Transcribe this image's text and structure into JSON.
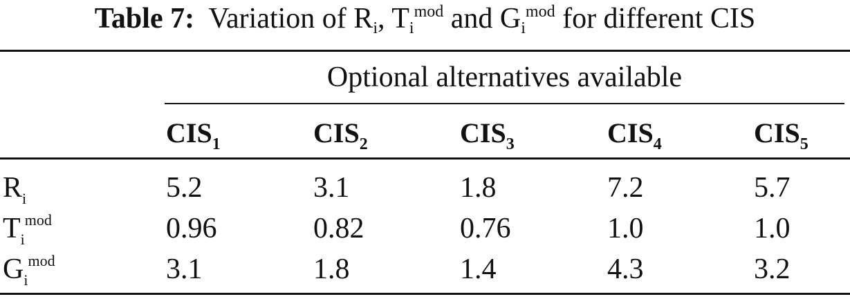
{
  "caption": {
    "label": "Table 7:",
    "text_before": "Variation of ",
    "r_symbol": "R",
    "r_sub": "i",
    "comma": ", ",
    "t_symbol": "T",
    "t_sub": "i",
    "t_sup": "mod",
    "and_text": " and ",
    "g_symbol": "G",
    "g_sub": "i",
    "g_sup": "mod",
    "text_after": " for different CIS"
  },
  "group_header": "Optional alternatives available",
  "columns": [
    {
      "base": "CIS",
      "sub": "1"
    },
    {
      "base": "CIS",
      "sub": "2"
    },
    {
      "base": "CIS",
      "sub": "3"
    },
    {
      "base": "CIS",
      "sub": "4"
    },
    {
      "base": "CIS",
      "sub": "5"
    }
  ],
  "rows": [
    {
      "symbol": "R",
      "sub": "i",
      "sup": "",
      "values": [
        "5.2",
        "3.1",
        "1.8",
        "7.2",
        "5.7"
      ]
    },
    {
      "symbol": "T",
      "sub": "i",
      "sup": "mod",
      "values": [
        "0.96",
        "0.82",
        "0.76",
        "1.0",
        "1.0"
      ]
    },
    {
      "symbol": "G",
      "sub": "i",
      "sup": "mod",
      "values": [
        "3.1",
        "1.8",
        "1.4",
        "4.3",
        "3.2"
      ]
    }
  ]
}
